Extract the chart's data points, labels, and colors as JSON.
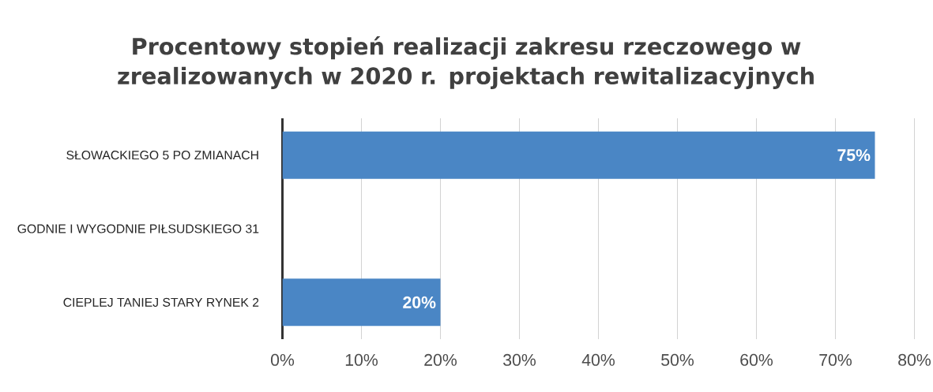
{
  "chart_data": {
    "type": "bar",
    "orientation": "horizontal",
    "title": "Procentowy stopień realizacji zakresu rzeczowego w zrealizowanych w 2020 r. projektach rewitalizacyjnych",
    "categories": [
      "SŁOWACKIEGO 5 PO ZMIANACH",
      "GODNIE I  WYGODNIE PIŁSUDSKIEGO 31",
      "CIEPLEJ TANIEJ STARY RYNEK 2"
    ],
    "values": [
      75,
      null,
      20
    ],
    "value_labels": [
      "75%",
      null,
      "20%"
    ],
    "color": "#4a86c5",
    "xlim": [
      0,
      80
    ],
    "xticks": [
      {
        "value": 0,
        "label": "0%"
      },
      {
        "value": 10,
        "label": "10%"
      },
      {
        "value": 20,
        "label": "20%"
      },
      {
        "value": 30,
        "label": "30%"
      },
      {
        "value": 40,
        "label": "40%"
      },
      {
        "value": 50,
        "label": "50%"
      },
      {
        "value": 60,
        "label": "60%"
      },
      {
        "value": 70,
        "label": "70%"
      },
      {
        "value": 80,
        "label": "80%"
      }
    ],
    "grid": "x"
  }
}
